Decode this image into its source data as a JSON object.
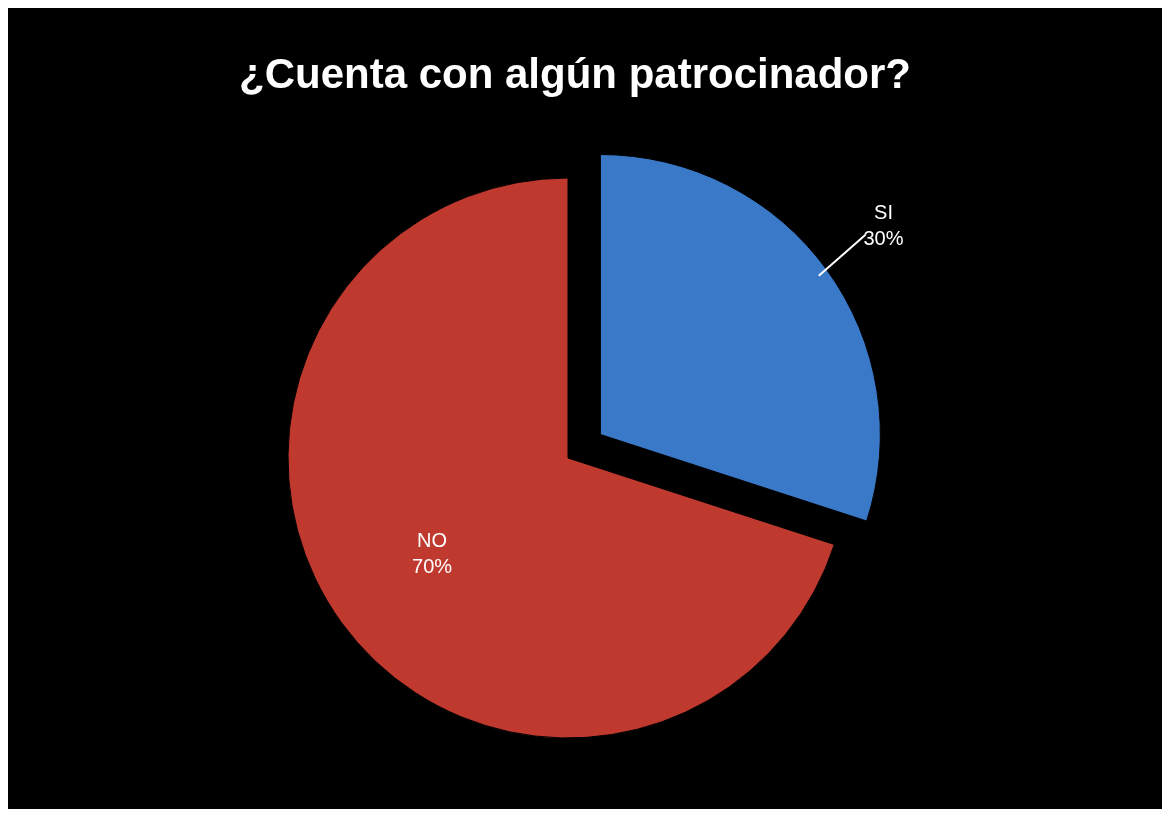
{
  "chart_data": {
    "type": "pie",
    "title": "¿Cuenta con algún patrocinador?",
    "categories": [
      "SI",
      "NO"
    ],
    "values": [
      30,
      70
    ],
    "colors": [
      "#3a78c8",
      "#c0392f"
    ],
    "value_labels": [
      "30%",
      "70%"
    ]
  }
}
